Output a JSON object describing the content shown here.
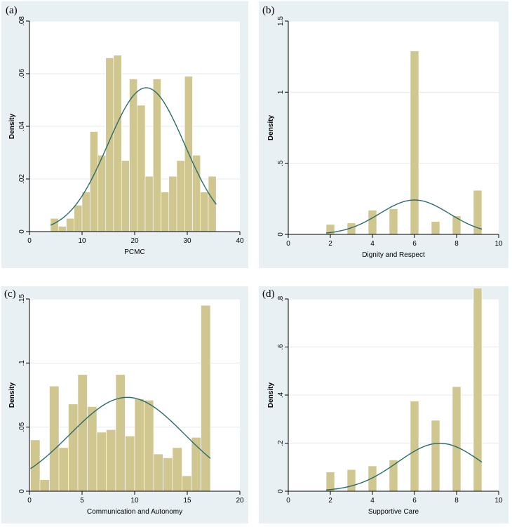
{
  "chart_data": [
    {
      "type": "bar",
      "panel_label": "(a)",
      "xlabel": "PCMC",
      "ylabel": "Density",
      "xlim": [
        0,
        40
      ],
      "ylim": [
        0,
        0.08
      ],
      "xticks": [
        0,
        10,
        20,
        30,
        40
      ],
      "xtick_labels": [
        "0",
        "10",
        "20",
        "30",
        "40"
      ],
      "yticks": [
        0,
        0.02,
        0.04,
        0.06,
        0.08
      ],
      "ytick_labels": [
        "0",
        ".02",
        ".04",
        ".06",
        ".08"
      ],
      "bins": [
        {
          "x0": 4.0,
          "x1": 5.5,
          "value": 0.005
        },
        {
          "x0": 5.5,
          "x1": 7.0,
          "value": 0.002
        },
        {
          "x0": 7.0,
          "x1": 8.5,
          "value": 0.005
        },
        {
          "x0": 8.5,
          "x1": 10.0,
          "value": 0.01
        },
        {
          "x0": 10.0,
          "x1": 11.5,
          "value": 0.015
        },
        {
          "x0": 11.5,
          "x1": 13.0,
          "value": 0.038
        },
        {
          "x0": 13.0,
          "x1": 14.5,
          "value": 0.029
        },
        {
          "x0": 14.5,
          "x1": 16.0,
          "value": 0.066
        },
        {
          "x0": 16.0,
          "x1": 17.5,
          "value": 0.067
        },
        {
          "x0": 17.5,
          "x1": 19.0,
          "value": 0.027
        },
        {
          "x0": 19.0,
          "x1": 20.5,
          "value": 0.058
        },
        {
          "x0": 20.5,
          "x1": 22.0,
          "value": 0.048
        },
        {
          "x0": 22.0,
          "x1": 23.5,
          "value": 0.021
        },
        {
          "x0": 23.5,
          "x1": 25.0,
          "value": 0.058
        },
        {
          "x0": 25.0,
          "x1": 26.5,
          "value": 0.015
        },
        {
          "x0": 26.5,
          "x1": 28.0,
          "value": 0.021
        },
        {
          "x0": 28.0,
          "x1": 29.5,
          "value": 0.027
        },
        {
          "x0": 29.5,
          "x1": 31.0,
          "value": 0.059
        },
        {
          "x0": 31.0,
          "x1": 32.5,
          "value": 0.029
        },
        {
          "x0": 32.5,
          "x1": 34.0,
          "value": 0.015
        },
        {
          "x0": 34.0,
          "x1": 35.5,
          "value": 0.021
        }
      ],
      "normal_curve": {
        "mean": 22.2,
        "sd": 7.3
      }
    },
    {
      "type": "bar",
      "panel_label": "(b)",
      "xlabel": "Dignity and Respect",
      "ylabel": "Density",
      "xlim": [
        0,
        10
      ],
      "ylim": [
        0,
        1.5
      ],
      "xticks": [
        0,
        2,
        4,
        6,
        8,
        10
      ],
      "xtick_labels": [
        "0",
        "2",
        "4",
        "6",
        "8",
        "10"
      ],
      "yticks": [
        0,
        0.5,
        1,
        1.5
      ],
      "ytick_labels": [
        "0",
        ".5",
        "1",
        "1.5"
      ],
      "bins": [
        {
          "x0": 1.8,
          "x1": 2.2,
          "value": 0.07
        },
        {
          "x0": 2.8,
          "x1": 3.2,
          "value": 0.08
        },
        {
          "x0": 3.8,
          "x1": 4.2,
          "value": 0.17
        },
        {
          "x0": 4.8,
          "x1": 5.2,
          "value": 0.18
        },
        {
          "x0": 5.8,
          "x1": 6.2,
          "value": 1.29
        },
        {
          "x0": 6.8,
          "x1": 7.2,
          "value": 0.09
        },
        {
          "x0": 7.8,
          "x1": 8.2,
          "value": 0.13
        },
        {
          "x0": 8.8,
          "x1": 9.2,
          "value": 0.31
        }
      ],
      "normal_curve": {
        "mean": 6.0,
        "sd": 1.65
      }
    },
    {
      "type": "bar",
      "panel_label": "(c)",
      "xlabel": "Communication and Autonomy",
      "ylabel": "Density",
      "xlim": [
        0,
        20
      ],
      "ylim": [
        0,
        0.15
      ],
      "xticks": [
        0,
        5,
        10,
        15,
        20
      ],
      "xtick_labels": [
        "0",
        "5",
        "10",
        "15",
        "20"
      ],
      "yticks": [
        0,
        0.05,
        0.1,
        0.15
      ],
      "ytick_labels": [
        "0",
        ".05",
        ".1",
        ".15"
      ],
      "bins": [
        {
          "x0": 0.1,
          "x1": 1.0,
          "value": 0.04
        },
        {
          "x0": 1.0,
          "x1": 1.9,
          "value": 0.009
        },
        {
          "x0": 1.9,
          "x1": 2.8,
          "value": 0.082
        },
        {
          "x0": 2.8,
          "x1": 3.7,
          "value": 0.034
        },
        {
          "x0": 3.7,
          "x1": 4.6,
          "value": 0.068
        },
        {
          "x0": 4.6,
          "x1": 5.5,
          "value": 0.091
        },
        {
          "x0": 5.5,
          "x1": 6.4,
          "value": 0.066
        },
        {
          "x0": 6.4,
          "x1": 7.3,
          "value": 0.046
        },
        {
          "x0": 7.3,
          "x1": 8.2,
          "value": 0.048
        },
        {
          "x0": 8.2,
          "x1": 9.1,
          "value": 0.091
        },
        {
          "x0": 9.1,
          "x1": 10.0,
          "value": 0.043
        },
        {
          "x0": 10.0,
          "x1": 10.9,
          "value": 0.072
        },
        {
          "x0": 10.9,
          "x1": 11.8,
          "value": 0.071
        },
        {
          "x0": 11.8,
          "x1": 12.7,
          "value": 0.029
        },
        {
          "x0": 12.7,
          "x1": 13.6,
          "value": 0.026
        },
        {
          "x0": 13.6,
          "x1": 14.5,
          "value": 0.034
        },
        {
          "x0": 14.5,
          "x1": 15.4,
          "value": 0.012
        },
        {
          "x0": 15.4,
          "x1": 16.3,
          "value": 0.042
        },
        {
          "x0": 16.3,
          "x1": 17.2,
          "value": 0.145
        }
      ],
      "normal_curve": {
        "mean": 9.3,
        "sd": 5.45
      }
    },
    {
      "type": "bar",
      "panel_label": "(d)",
      "xlabel": "Supportive Care",
      "ylabel": "Density",
      "xlim": [
        0,
        10
      ],
      "ylim": [
        0,
        0.8
      ],
      "xticks": [
        0,
        2,
        4,
        6,
        8,
        10
      ],
      "xtick_labels": [
        "0",
        "2",
        "4",
        "6",
        "8",
        "10"
      ],
      "yticks": [
        0,
        0.2,
        0.4,
        0.6,
        0.8
      ],
      "ytick_labels": [
        "0",
        ".2",
        ".4",
        ".6",
        ".8"
      ],
      "bins": [
        {
          "x0": 1.8,
          "x1": 2.2,
          "value": 0.08
        },
        {
          "x0": 2.8,
          "x1": 3.2,
          "value": 0.09
        },
        {
          "x0": 3.8,
          "x1": 4.2,
          "value": 0.105
        },
        {
          "x0": 4.8,
          "x1": 5.2,
          "value": 0.13
        },
        {
          "x0": 5.8,
          "x1": 6.2,
          "value": 0.375
        },
        {
          "x0": 6.8,
          "x1": 7.2,
          "value": 0.295
        },
        {
          "x0": 7.8,
          "x1": 8.2,
          "value": 0.435
        },
        {
          "x0": 8.8,
          "x1": 9.2,
          "value": 0.845
        }
      ],
      "normal_curve": {
        "mean": 7.2,
        "sd": 2.0
      }
    }
  ],
  "colors": {
    "bar_fill": "#cfc78f",
    "curve": "#2b6b6b",
    "panel_bg": "#e9f0f4",
    "plot_bg": "#ffffff",
    "grid": "#e6eaec"
  }
}
